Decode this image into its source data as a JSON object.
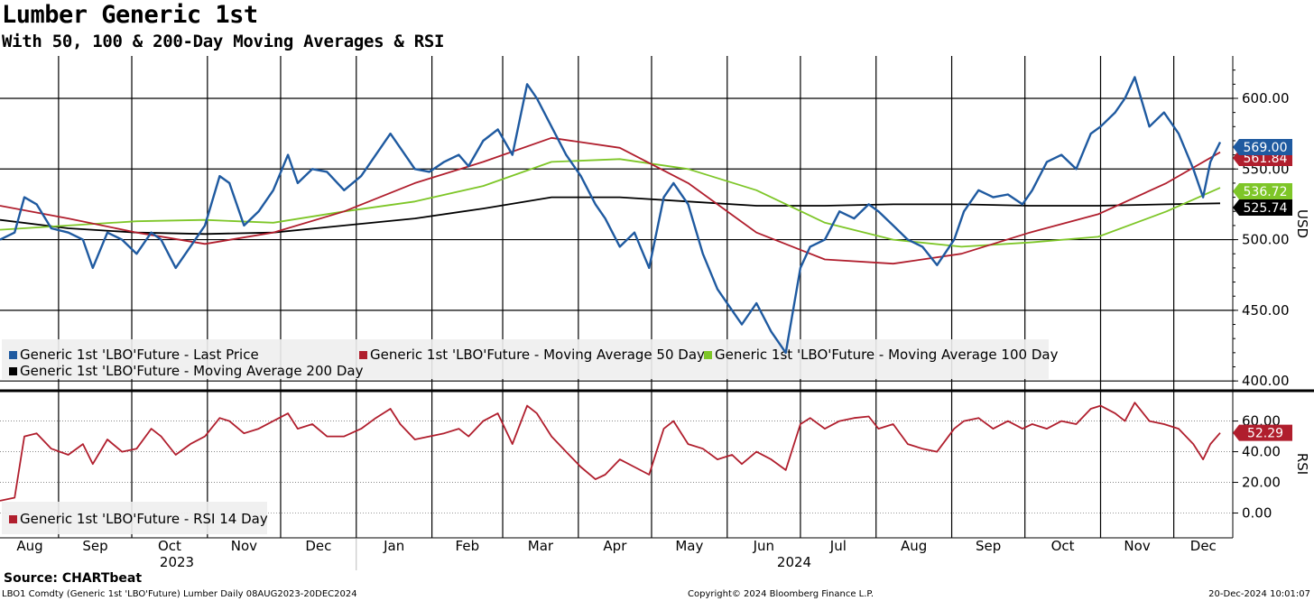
{
  "header": {
    "title": "Lumber Generic 1st",
    "subtitle": "With 50, 100 & 200-Day Moving Averages & RSI"
  },
  "footer": {
    "source": "Source: CHARTbeat",
    "left": "LBO1 Comdty (Generic 1st 'LBO'Future) Lumber  Daily 08AUG2023-20DEC2024",
    "center": "Copyright© 2024 Bloomberg Finance L.P.",
    "right": "20-Dec-2024 10:01:07"
  },
  "colors": {
    "price": "#1f5aa0",
    "ma50": "#b01e2d",
    "ma100": "#7ec628",
    "ma200": "#000000",
    "rsi": "#b01e2d",
    "grid": "#000000",
    "legend_bg": "#eeeeee"
  },
  "chart_data": [
    {
      "type": "line",
      "panel": "price",
      "ylabel": "USD",
      "ylim": [
        395,
        630
      ],
      "yticks": [
        "400.00",
        "450.00",
        "500.00",
        "550.00",
        "600.00"
      ],
      "x_range": [
        "2023-08-08",
        "2024-12-20"
      ],
      "months": [
        "Aug",
        "Sep",
        "Oct",
        "Nov",
        "Dec",
        "Jan",
        "Feb",
        "Mar",
        "Apr",
        "May",
        "Jun",
        "Jul",
        "Aug",
        "Sep",
        "Oct",
        "Nov",
        "Dec"
      ],
      "years": [
        "2023",
        "2024"
      ],
      "legend": [
        "Generic 1st 'LBO'Future - Last Price",
        "Generic 1st 'LBO'Future - Moving Average 50 Day",
        "Generic 1st 'LBO'Future - Moving Average 100 Day",
        "Generic 1st 'LBO'Future - Moving Average 200 Day"
      ],
      "last_values": [
        "569.00",
        "561.84",
        "536.72",
        "525.74"
      ],
      "series": [
        {
          "name": "Generic 1st 'LBO'Future - Last Price",
          "x": [
            "2023-08-08",
            "2023-08-14",
            "2023-08-18",
            "2023-08-23",
            "2023-08-29",
            "2023-09-05",
            "2023-09-11",
            "2023-09-15",
            "2023-09-21",
            "2023-09-27",
            "2023-10-03",
            "2023-10-09",
            "2023-10-13",
            "2023-10-19",
            "2023-10-25",
            "2023-10-31",
            "2023-11-06",
            "2023-11-10",
            "2023-11-16",
            "2023-11-22",
            "2023-11-28",
            "2023-12-04",
            "2023-12-08",
            "2023-12-14",
            "2023-12-20",
            "2023-12-27",
            "2024-01-03",
            "2024-01-09",
            "2024-01-15",
            "2024-01-19",
            "2024-01-25",
            "2024-01-31",
            "2024-02-06",
            "2024-02-12",
            "2024-02-16",
            "2024-02-22",
            "2024-02-28",
            "2024-03-05",
            "2024-03-11",
            "2024-03-15",
            "2024-03-21",
            "2024-03-27",
            "2024-04-02",
            "2024-04-08",
            "2024-04-12",
            "2024-04-18",
            "2024-04-24",
            "2024-04-30",
            "2024-05-06",
            "2024-05-10",
            "2024-05-16",
            "2024-05-22",
            "2024-05-28",
            "2024-06-03",
            "2024-06-07",
            "2024-06-13",
            "2024-06-19",
            "2024-06-25",
            "2024-07-01",
            "2024-07-05",
            "2024-07-11",
            "2024-07-17",
            "2024-07-23",
            "2024-07-29",
            "2024-08-02",
            "2024-08-08",
            "2024-08-14",
            "2024-08-20",
            "2024-08-26",
            "2024-09-02",
            "2024-09-06",
            "2024-09-12",
            "2024-09-18",
            "2024-09-24",
            "2024-09-30",
            "2024-10-04",
            "2024-10-10",
            "2024-10-16",
            "2024-10-22",
            "2024-10-28",
            "2024-11-01",
            "2024-11-07",
            "2024-11-11",
            "2024-11-15",
            "2024-11-21",
            "2024-11-27",
            "2024-12-03",
            "2024-12-09",
            "2024-12-13",
            "2024-12-16",
            "2024-12-20"
          ],
          "values": [
            500,
            505,
            530,
            525,
            508,
            505,
            500,
            480,
            505,
            500,
            490,
            505,
            500,
            480,
            495,
            510,
            545,
            540,
            510,
            520,
            535,
            560,
            540,
            550,
            548,
            535,
            545,
            560,
            575,
            565,
            550,
            548,
            555,
            560,
            552,
            570,
            578,
            560,
            610,
            600,
            580,
            560,
            545,
            525,
            515,
            495,
            505,
            480,
            530,
            540,
            525,
            490,
            465,
            450,
            440,
            455,
            435,
            420,
            480,
            495,
            500,
            520,
            515,
            525,
            520,
            510,
            500,
            495,
            482,
            500,
            520,
            535,
            530,
            532,
            525,
            535,
            555,
            560,
            550,
            575,
            580,
            590,
            600,
            615,
            580,
            590,
            575,
            550,
            530,
            555,
            569
          ]
        },
        {
          "name": "Generic 1st 'LBO'Future - Moving Average 50 Day",
          "x": [
            "2023-08-08",
            "2023-09-05",
            "2023-10-03",
            "2023-10-31",
            "2023-11-28",
            "2023-12-27",
            "2024-01-25",
            "2024-02-22",
            "2024-03-21",
            "2024-04-18",
            "2024-05-16",
            "2024-06-13",
            "2024-07-11",
            "2024-08-08",
            "2024-09-05",
            "2024-10-03",
            "2024-10-31",
            "2024-11-28",
            "2024-12-20"
          ],
          "values": [
            524,
            515,
            505,
            497,
            505,
            520,
            540,
            555,
            572,
            565,
            540,
            505,
            486,
            483,
            490,
            505,
            518,
            540,
            561.84
          ]
        },
        {
          "name": "Generic 1st 'LBO'Future - Moving Average 100 Day",
          "x": [
            "2023-08-08",
            "2023-09-05",
            "2023-10-03",
            "2023-10-31",
            "2023-11-28",
            "2023-12-27",
            "2024-01-25",
            "2024-02-22",
            "2024-03-21",
            "2024-04-18",
            "2024-05-16",
            "2024-06-13",
            "2024-07-11",
            "2024-08-08",
            "2024-09-05",
            "2024-10-03",
            "2024-10-31",
            "2024-11-28",
            "2024-12-20"
          ],
          "values": [
            507,
            510,
            513,
            514,
            512,
            520,
            527,
            538,
            555,
            557,
            550,
            535,
            512,
            500,
            495,
            498,
            502,
            520,
            536.72
          ]
        },
        {
          "name": "Generic 1st 'LBO'Future - Moving Average 200 Day",
          "x": [
            "2023-08-08",
            "2023-09-05",
            "2023-10-03",
            "2023-10-31",
            "2023-11-28",
            "2023-12-27",
            "2024-01-25",
            "2024-02-22",
            "2024-03-21",
            "2024-04-18",
            "2024-05-16",
            "2024-06-13",
            "2024-07-11",
            "2024-08-08",
            "2024-09-05",
            "2024-10-03",
            "2024-10-31",
            "2024-11-28",
            "2024-12-20"
          ],
          "values": [
            514,
            508,
            505,
            504,
            505,
            510,
            515,
            522,
            530,
            530,
            527,
            524,
            524,
            525,
            525,
            524,
            524,
            525,
            525.74
          ]
        }
      ]
    },
    {
      "type": "line",
      "panel": "rsi",
      "ylabel": "RSI",
      "ylim": [
        -15,
        78
      ],
      "yticks": [
        "0.00",
        "20.00",
        "40.00",
        "60.00"
      ],
      "legend": [
        "Generic 1st 'LBO'Future - RSI 14 Day"
      ],
      "last_values": [
        "52.29"
      ],
      "series": [
        {
          "name": "Generic 1st 'LBO'Future - RSI 14 Day",
          "x": [
            "2023-08-08",
            "2023-08-14",
            "2023-08-18",
            "2023-08-23",
            "2023-08-29",
            "2023-09-05",
            "2023-09-11",
            "2023-09-15",
            "2023-09-21",
            "2023-09-27",
            "2023-10-03",
            "2023-10-09",
            "2023-10-13",
            "2023-10-19",
            "2023-10-25",
            "2023-10-31",
            "2023-11-06",
            "2023-11-10",
            "2023-11-16",
            "2023-11-22",
            "2023-11-28",
            "2023-12-04",
            "2023-12-08",
            "2023-12-14",
            "2023-12-20",
            "2023-12-27",
            "2024-01-03",
            "2024-01-09",
            "2024-01-15",
            "2024-01-19",
            "2024-01-25",
            "2024-01-31",
            "2024-02-06",
            "2024-02-12",
            "2024-02-16",
            "2024-02-22",
            "2024-02-28",
            "2024-03-05",
            "2024-03-11",
            "2024-03-15",
            "2024-03-21",
            "2024-03-27",
            "2024-04-02",
            "2024-04-08",
            "2024-04-12",
            "2024-04-18",
            "2024-04-24",
            "2024-04-30",
            "2024-05-06",
            "2024-05-10",
            "2024-05-16",
            "2024-05-22",
            "2024-05-28",
            "2024-06-03",
            "2024-06-07",
            "2024-06-13",
            "2024-06-19",
            "2024-06-25",
            "2024-07-01",
            "2024-07-05",
            "2024-07-11",
            "2024-07-17",
            "2024-07-23",
            "2024-07-29",
            "2024-08-02",
            "2024-08-08",
            "2024-08-14",
            "2024-08-20",
            "2024-08-26",
            "2024-09-02",
            "2024-09-06",
            "2024-09-12",
            "2024-09-18",
            "2024-09-24",
            "2024-09-30",
            "2024-10-04",
            "2024-10-10",
            "2024-10-16",
            "2024-10-22",
            "2024-10-28",
            "2024-11-01",
            "2024-11-07",
            "2024-11-11",
            "2024-11-15",
            "2024-11-21",
            "2024-11-27",
            "2024-12-03",
            "2024-12-09",
            "2024-12-13",
            "2024-12-16",
            "2024-12-20"
          ],
          "values": [
            8,
            10,
            50,
            52,
            42,
            38,
            45,
            32,
            48,
            40,
            42,
            55,
            50,
            38,
            45,
            50,
            62,
            60,
            52,
            55,
            60,
            65,
            55,
            58,
            50,
            50,
            55,
            62,
            68,
            58,
            48,
            50,
            52,
            55,
            50,
            60,
            65,
            45,
            70,
            65,
            50,
            40,
            30,
            22,
            25,
            35,
            30,
            25,
            55,
            60,
            45,
            42,
            35,
            38,
            32,
            40,
            35,
            28,
            58,
            62,
            55,
            60,
            62,
            63,
            55,
            58,
            45,
            42,
            40,
            55,
            60,
            62,
            55,
            60,
            55,
            58,
            55,
            60,
            58,
            68,
            70,
            65,
            60,
            72,
            60,
            58,
            55,
            45,
            35,
            45,
            52.29
          ]
        }
      ]
    }
  ]
}
